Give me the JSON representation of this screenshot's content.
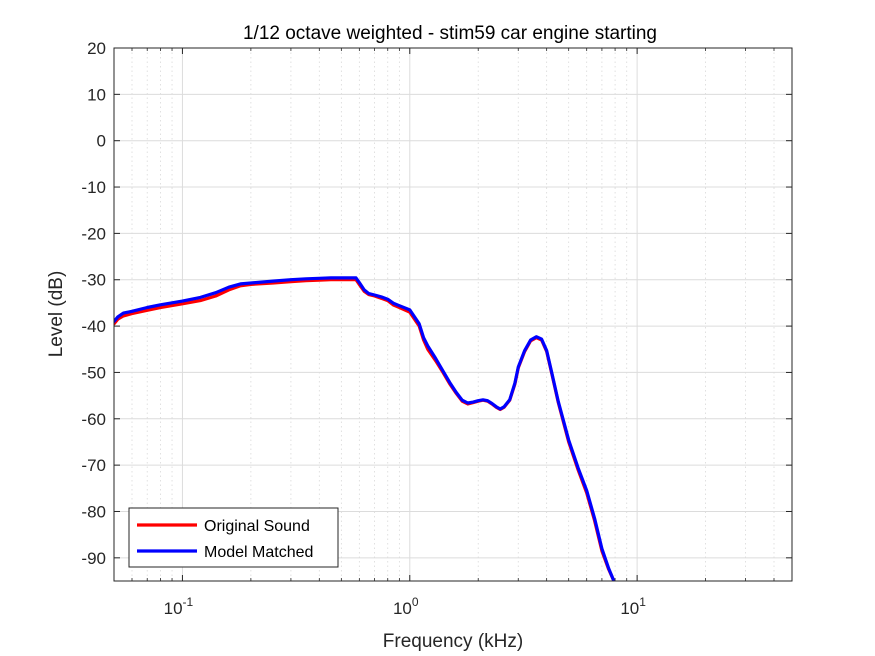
{
  "chart_data": {
    "type": "line",
    "title": "1/12 octave weighted - stim59 car engine starting",
    "xlabel": "Frequency (kHz)",
    "ylabel": "Level (dB)",
    "xscale": "log",
    "xlim": [
      0.05,
      48
    ],
    "ylim": [
      -95,
      20
    ],
    "xticks": [
      {
        "value": 0.1,
        "base": "10",
        "exp": "-1"
      },
      {
        "value": 1,
        "base": "10",
        "exp": "0"
      },
      {
        "value": 10,
        "base": "10",
        "exp": "1"
      }
    ],
    "yticks": [
      20,
      10,
      0,
      -10,
      -20,
      -30,
      -40,
      -50,
      -60,
      -70,
      -80,
      -90
    ],
    "grid": true,
    "legend_position": "bottom-left",
    "series": [
      {
        "name": "Original Sound",
        "color": "#ff0000",
        "x": [
          0.05,
          0.052,
          0.055,
          0.06,
          0.07,
          0.08,
          0.1,
          0.12,
          0.14,
          0.16,
          0.18,
          0.2,
          0.25,
          0.3,
          0.35,
          0.4,
          0.45,
          0.5,
          0.55,
          0.58,
          0.6,
          0.63,
          0.66,
          0.7,
          0.75,
          0.8,
          0.85,
          0.9,
          1.0,
          1.1,
          1.15,
          1.2,
          1.3,
          1.4,
          1.5,
          1.6,
          1.7,
          1.8,
          1.9,
          2.0,
          2.1,
          2.2,
          2.3,
          2.4,
          2.5,
          2.6,
          2.75,
          2.9,
          3.0,
          3.2,
          3.4,
          3.6,
          3.8,
          4.0,
          4.2,
          4.5,
          5.0,
          5.5,
          6.0,
          6.5,
          7.0,
          7.5,
          7.9
        ],
        "y": [
          -39.5,
          -38.5,
          -37.8,
          -37.3,
          -36.6,
          -36.0,
          -35.2,
          -34.5,
          -33.5,
          -32.2,
          -31.3,
          -31.0,
          -30.7,
          -30.4,
          -30.2,
          -30.1,
          -30.0,
          -30.0,
          -30.0,
          -30.0,
          -31.0,
          -32.5,
          -33.2,
          -33.5,
          -34.0,
          -34.5,
          -35.5,
          -36.0,
          -37.0,
          -40.0,
          -43.0,
          -45.0,
          -47.5,
          -50.0,
          -52.5,
          -54.5,
          -56.2,
          -56.8,
          -56.5,
          -56.2,
          -56.0,
          -56.2,
          -56.8,
          -57.5,
          -58.0,
          -57.5,
          -56.0,
          -52.5,
          -49.0,
          -45.5,
          -43.2,
          -42.5,
          -43.0,
          -45.5,
          -50.0,
          -56.5,
          -65.0,
          -71.0,
          -76.0,
          -82.0,
          -88.5,
          -92.5,
          -95.0
        ]
      },
      {
        "name": "Model Matched",
        "color": "#0000ff",
        "x": [
          0.05,
          0.052,
          0.055,
          0.06,
          0.07,
          0.08,
          0.1,
          0.12,
          0.14,
          0.16,
          0.18,
          0.2,
          0.25,
          0.3,
          0.35,
          0.4,
          0.45,
          0.5,
          0.55,
          0.58,
          0.6,
          0.63,
          0.66,
          0.7,
          0.75,
          0.8,
          0.85,
          0.9,
          1.0,
          1.1,
          1.15,
          1.2,
          1.3,
          1.4,
          1.5,
          1.6,
          1.7,
          1.8,
          1.9,
          2.0,
          2.1,
          2.2,
          2.3,
          2.4,
          2.5,
          2.6,
          2.75,
          2.9,
          3.0,
          3.2,
          3.4,
          3.6,
          3.8,
          4.0,
          4.2,
          4.5,
          5.0,
          5.5,
          6.0,
          6.5,
          7.0,
          7.5,
          7.9
        ],
        "y": [
          -39.0,
          -38.0,
          -37.2,
          -36.8,
          -36.0,
          -35.4,
          -34.6,
          -33.8,
          -32.8,
          -31.6,
          -30.9,
          -30.7,
          -30.3,
          -30.0,
          -29.8,
          -29.7,
          -29.6,
          -29.6,
          -29.6,
          -29.6,
          -30.6,
          -32.2,
          -33.0,
          -33.3,
          -33.7,
          -34.2,
          -35.1,
          -35.6,
          -36.5,
          -39.5,
          -42.5,
          -44.3,
          -47.0,
          -49.7,
          -52.2,
          -54.3,
          -56.0,
          -56.6,
          -56.4,
          -56.1,
          -55.9,
          -56.1,
          -56.7,
          -57.4,
          -57.9,
          -57.4,
          -55.9,
          -52.3,
          -48.8,
          -45.3,
          -43.0,
          -42.3,
          -42.8,
          -45.3,
          -49.8,
          -56.3,
          -64.6,
          -70.6,
          -75.5,
          -81.5,
          -88.0,
          -92.3,
          -95.0
        ]
      }
    ]
  }
}
